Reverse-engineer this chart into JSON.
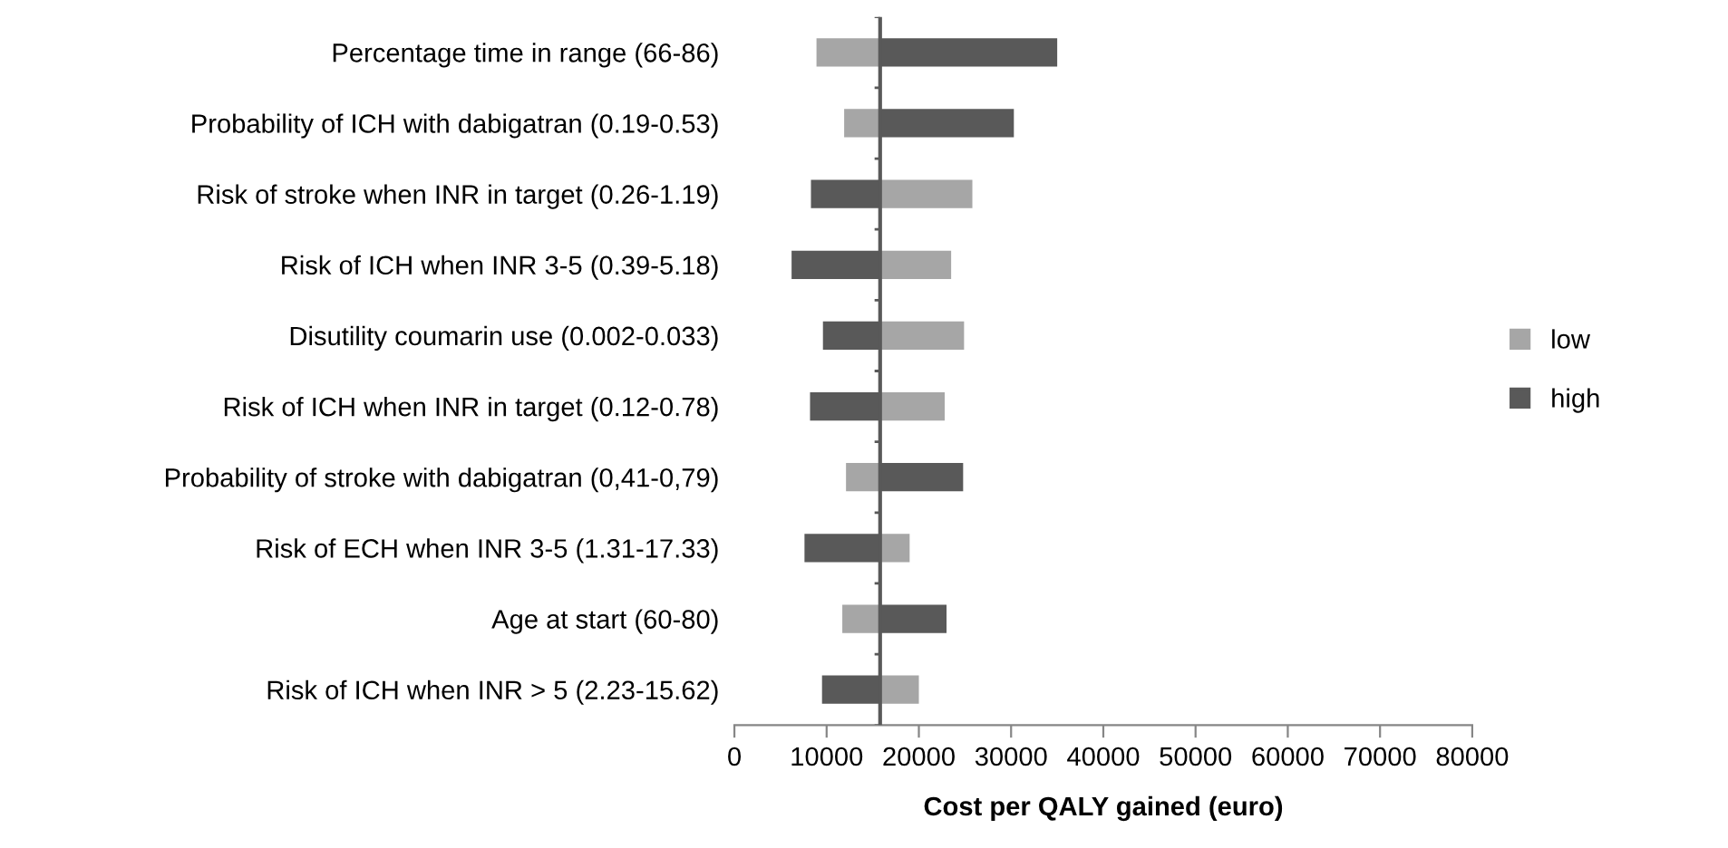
{
  "chart_data": {
    "type": "bar",
    "orientation": "horizontal",
    "xlabel": "Cost per QALY gained (euro)",
    "categories": [
      "Percentage time in range (66-86)",
      "Probability of ICH with dabigatran (0.19-0.53)",
      "Risk of stroke when INR in target (0.26-1.19)",
      "Risk of ICH when INR 3-5 (0.39-5.18)",
      "Disutility coumarin use (0.002-0.033)",
      "Risk of ICH when INR in target (0.12-0.78)",
      "Probability of stroke with dabigatran (0,41-0,79)",
      "Risk of ECH when INR 3-5 (1.31-17.33)",
      "Age at start (60-80)",
      "Risk of ICH when INR > 5 (2.23-15.62)"
    ],
    "series": [
      {
        "name": "low",
        "color": "#a6a6a6",
        "base": [
          8900,
          11900,
          15800,
          15800,
          15800,
          15800,
          12100,
          15800,
          11700,
          15800
        ],
        "values": [
          6900,
          3900,
          10000,
          7700,
          9100,
          7000,
          3700,
          3200,
          4100,
          4200
        ]
      },
      {
        "name": "high",
        "color": "#595959",
        "base": [
          15800,
          15800,
          8300,
          6200,
          9600,
          8200,
          15800,
          7600,
          15800,
          9500
        ],
        "values": [
          19200,
          14500,
          7500,
          9600,
          6200,
          7600,
          9000,
          8200,
          7200,
          6300
        ]
      }
    ],
    "ref_lines": [
      {
        "axis": "x",
        "value": 15800,
        "color": "#595959"
      }
    ],
    "xlim": [
      0,
      80000
    ],
    "xticks": [
      0,
      10000,
      20000,
      30000,
      40000,
      50000,
      60000,
      70000,
      80000
    ],
    "grid": false,
    "legend": "right"
  }
}
